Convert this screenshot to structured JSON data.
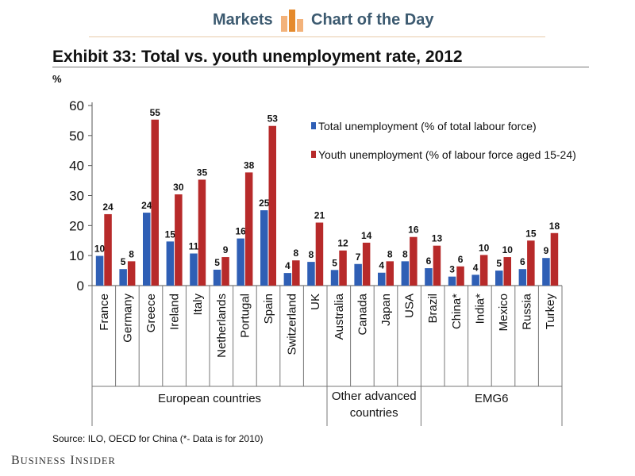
{
  "banner": {
    "left": "Markets",
    "right": "Chart of the Day"
  },
  "exhibit_title": "Exhibit 33: Total vs. youth unemployment rate, 2012",
  "source": "Source: ILO, OECD for China (*- Data is for 2010)",
  "brand": {
    "first": "B",
    "first_rest": "USINESS",
    "second": "I",
    "second_rest": "NSIDER"
  },
  "colors": {
    "total": "#2f5fb5",
    "youth": "#b72a2a",
    "banner_text": "#3c5a70",
    "logo_orange": "#e58a2c"
  },
  "chart_data": {
    "type": "bar",
    "ylabel": "%",
    "ylim": [
      0,
      60
    ],
    "yticks": [
      0,
      10,
      20,
      30,
      40,
      50,
      60
    ],
    "categories": [
      "France",
      "Germany",
      "Greece",
      "Ireland",
      "Italy",
      "Netherlands",
      "Portugal",
      "Spain",
      "Switzerland",
      "UK",
      "Australia",
      "Canada",
      "Japan",
      "USA",
      "Brazil",
      "China*",
      "India*",
      "Mexico",
      "Russia",
      "Turkey"
    ],
    "series": [
      {
        "name": "Total unemployment (% of total labour force)",
        "values": [
          9.9,
          5.5,
          24.3,
          14.7,
          10.7,
          5.3,
          15.7,
          25.1,
          4.2,
          7.9,
          5.2,
          7.2,
          4.3,
          8.1,
          5.8,
          3.0,
          3.6,
          5.0,
          5.5,
          9.2
        ],
        "labels": [
          "10",
          "5",
          "24",
          "15",
          "11",
          "5",
          "16",
          "25",
          "4",
          "8",
          "5",
          "7",
          "4",
          "8",
          "6",
          "3",
          "4",
          "5",
          "6",
          "9"
        ]
      },
      {
        "name": "Youth unemployment (% of labour force aged 15-24)",
        "values": [
          23.8,
          8.1,
          55.3,
          30.4,
          35.3,
          9.5,
          37.7,
          53.2,
          8.4,
          21.0,
          11.7,
          14.3,
          8.1,
          16.2,
          13.3,
          6.4,
          10.2,
          9.5,
          15.0,
          17.5
        ],
        "labels": [
          "24",
          "8",
          "55",
          "30",
          "35",
          "9",
          "38",
          "53",
          "8",
          "21",
          "12",
          "14",
          "8",
          "16",
          "13",
          "6",
          "10",
          "10",
          "15",
          "18"
        ]
      }
    ],
    "groups": [
      {
        "label_lines": [
          "European countries"
        ],
        "count": 10
      },
      {
        "label_lines": [
          "Other advanced",
          "countries"
        ],
        "count": 4
      },
      {
        "label_lines": [
          "EMG6"
        ],
        "count": 6
      }
    ]
  }
}
